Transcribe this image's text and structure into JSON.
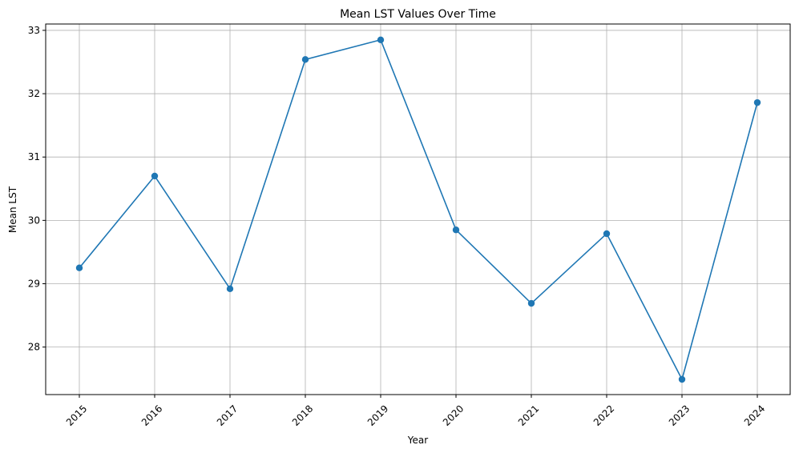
{
  "chart_data": {
    "type": "line",
    "title": "Mean LST Values Over Time",
    "xlabel": "Year",
    "ylabel": "Mean LST",
    "x": [
      "2015",
      "2016",
      "2017",
      "2018",
      "2019",
      "2020",
      "2021",
      "2022",
      "2023",
      "2024"
    ],
    "series": [
      {
        "values": [
          29.25,
          30.7,
          28.92,
          32.54,
          32.85,
          29.85,
          28.69,
          29.79,
          27.49,
          31.86
        ],
        "color": "#1f77b4",
        "marker": "circle"
      }
    ],
    "ylim": [
      27.25,
      33.1
    ],
    "yticks": [
      28,
      29,
      30,
      31,
      32,
      33
    ],
    "grid": true,
    "x_tick_rotation": 45
  }
}
